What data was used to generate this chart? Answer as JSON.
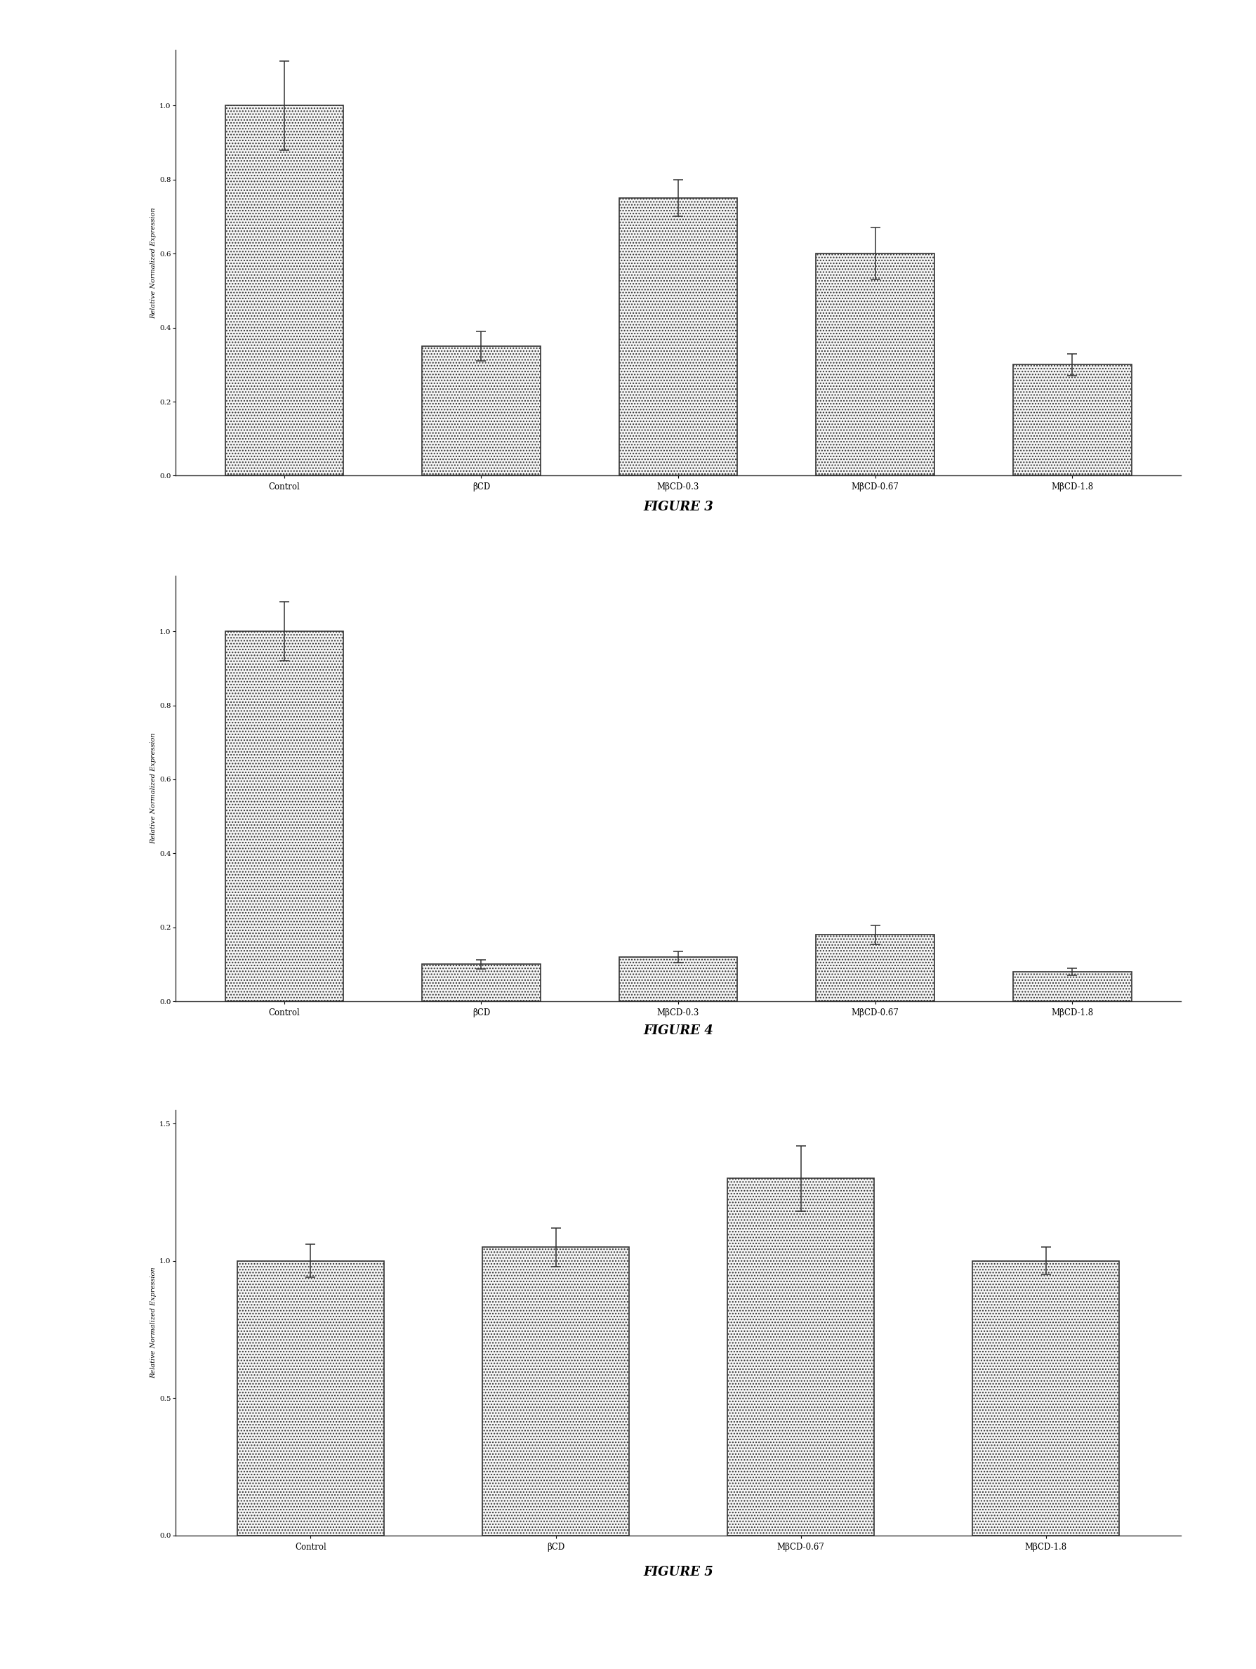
{
  "fig3": {
    "title": "FIGURE 3",
    "categories": [
      "Control",
      "βCD",
      "MβCD-0.3",
      "MβCD-0.67",
      "MβCD-1.8"
    ],
    "values": [
      1.0,
      0.35,
      0.75,
      0.6,
      0.3
    ],
    "errors": [
      0.12,
      0.04,
      0.05,
      0.07,
      0.03
    ],
    "ylabel": "Relative Normalized Expression",
    "ylim": [
      0.0,
      1.15
    ],
    "yticks": [
      0.0,
      0.2,
      0.4,
      0.6,
      0.8,
      1.0
    ],
    "ytick_labels": [
      "0.0",
      "0.2",
      "0.4",
      "0.6",
      "0.8",
      "1.0"
    ]
  },
  "fig4": {
    "title": "FIGURE 4",
    "categories": [
      "Control",
      "βCD",
      "MβCD-0.3",
      "MβCD-0.67",
      "MβCD-1.8"
    ],
    "values": [
      1.0,
      0.1,
      0.12,
      0.18,
      0.08
    ],
    "errors": [
      0.08,
      0.012,
      0.015,
      0.025,
      0.01
    ],
    "ylabel": "Relative Normalized Expression",
    "ylim": [
      0.0,
      1.15
    ],
    "yticks": [
      0.0,
      0.2,
      0.4,
      0.6,
      0.8,
      1.0
    ],
    "ytick_labels": [
      "0.0",
      "0.2",
      "0.4",
      "0.6",
      "0.8",
      "1.0"
    ]
  },
  "fig5": {
    "title": "FIGURE 5",
    "categories": [
      "Control",
      "βCD",
      "MβCD-0.67",
      "MβCD-1.8"
    ],
    "values": [
      1.0,
      1.05,
      1.3,
      1.0
    ],
    "errors": [
      0.06,
      0.07,
      0.12,
      0.05
    ],
    "ylabel": "Relative Normalized Expression",
    "ylim": [
      0.0,
      1.55
    ],
    "yticks": [
      0.0,
      0.5,
      1.0,
      1.5
    ],
    "ytick_labels": [
      "0.0",
      "0.5",
      "1.0",
      "1.5"
    ]
  },
  "bar_color": "#f5f5f5",
  "bar_edgecolor": "#333333",
  "background_color": "#ffffff",
  "figure_label_fontsize": 13,
  "axis_label_fontsize": 7,
  "tick_fontsize": 7.5,
  "xtick_fontsize": 8.5,
  "bar_width": 0.6,
  "title_fontweight": "bold"
}
